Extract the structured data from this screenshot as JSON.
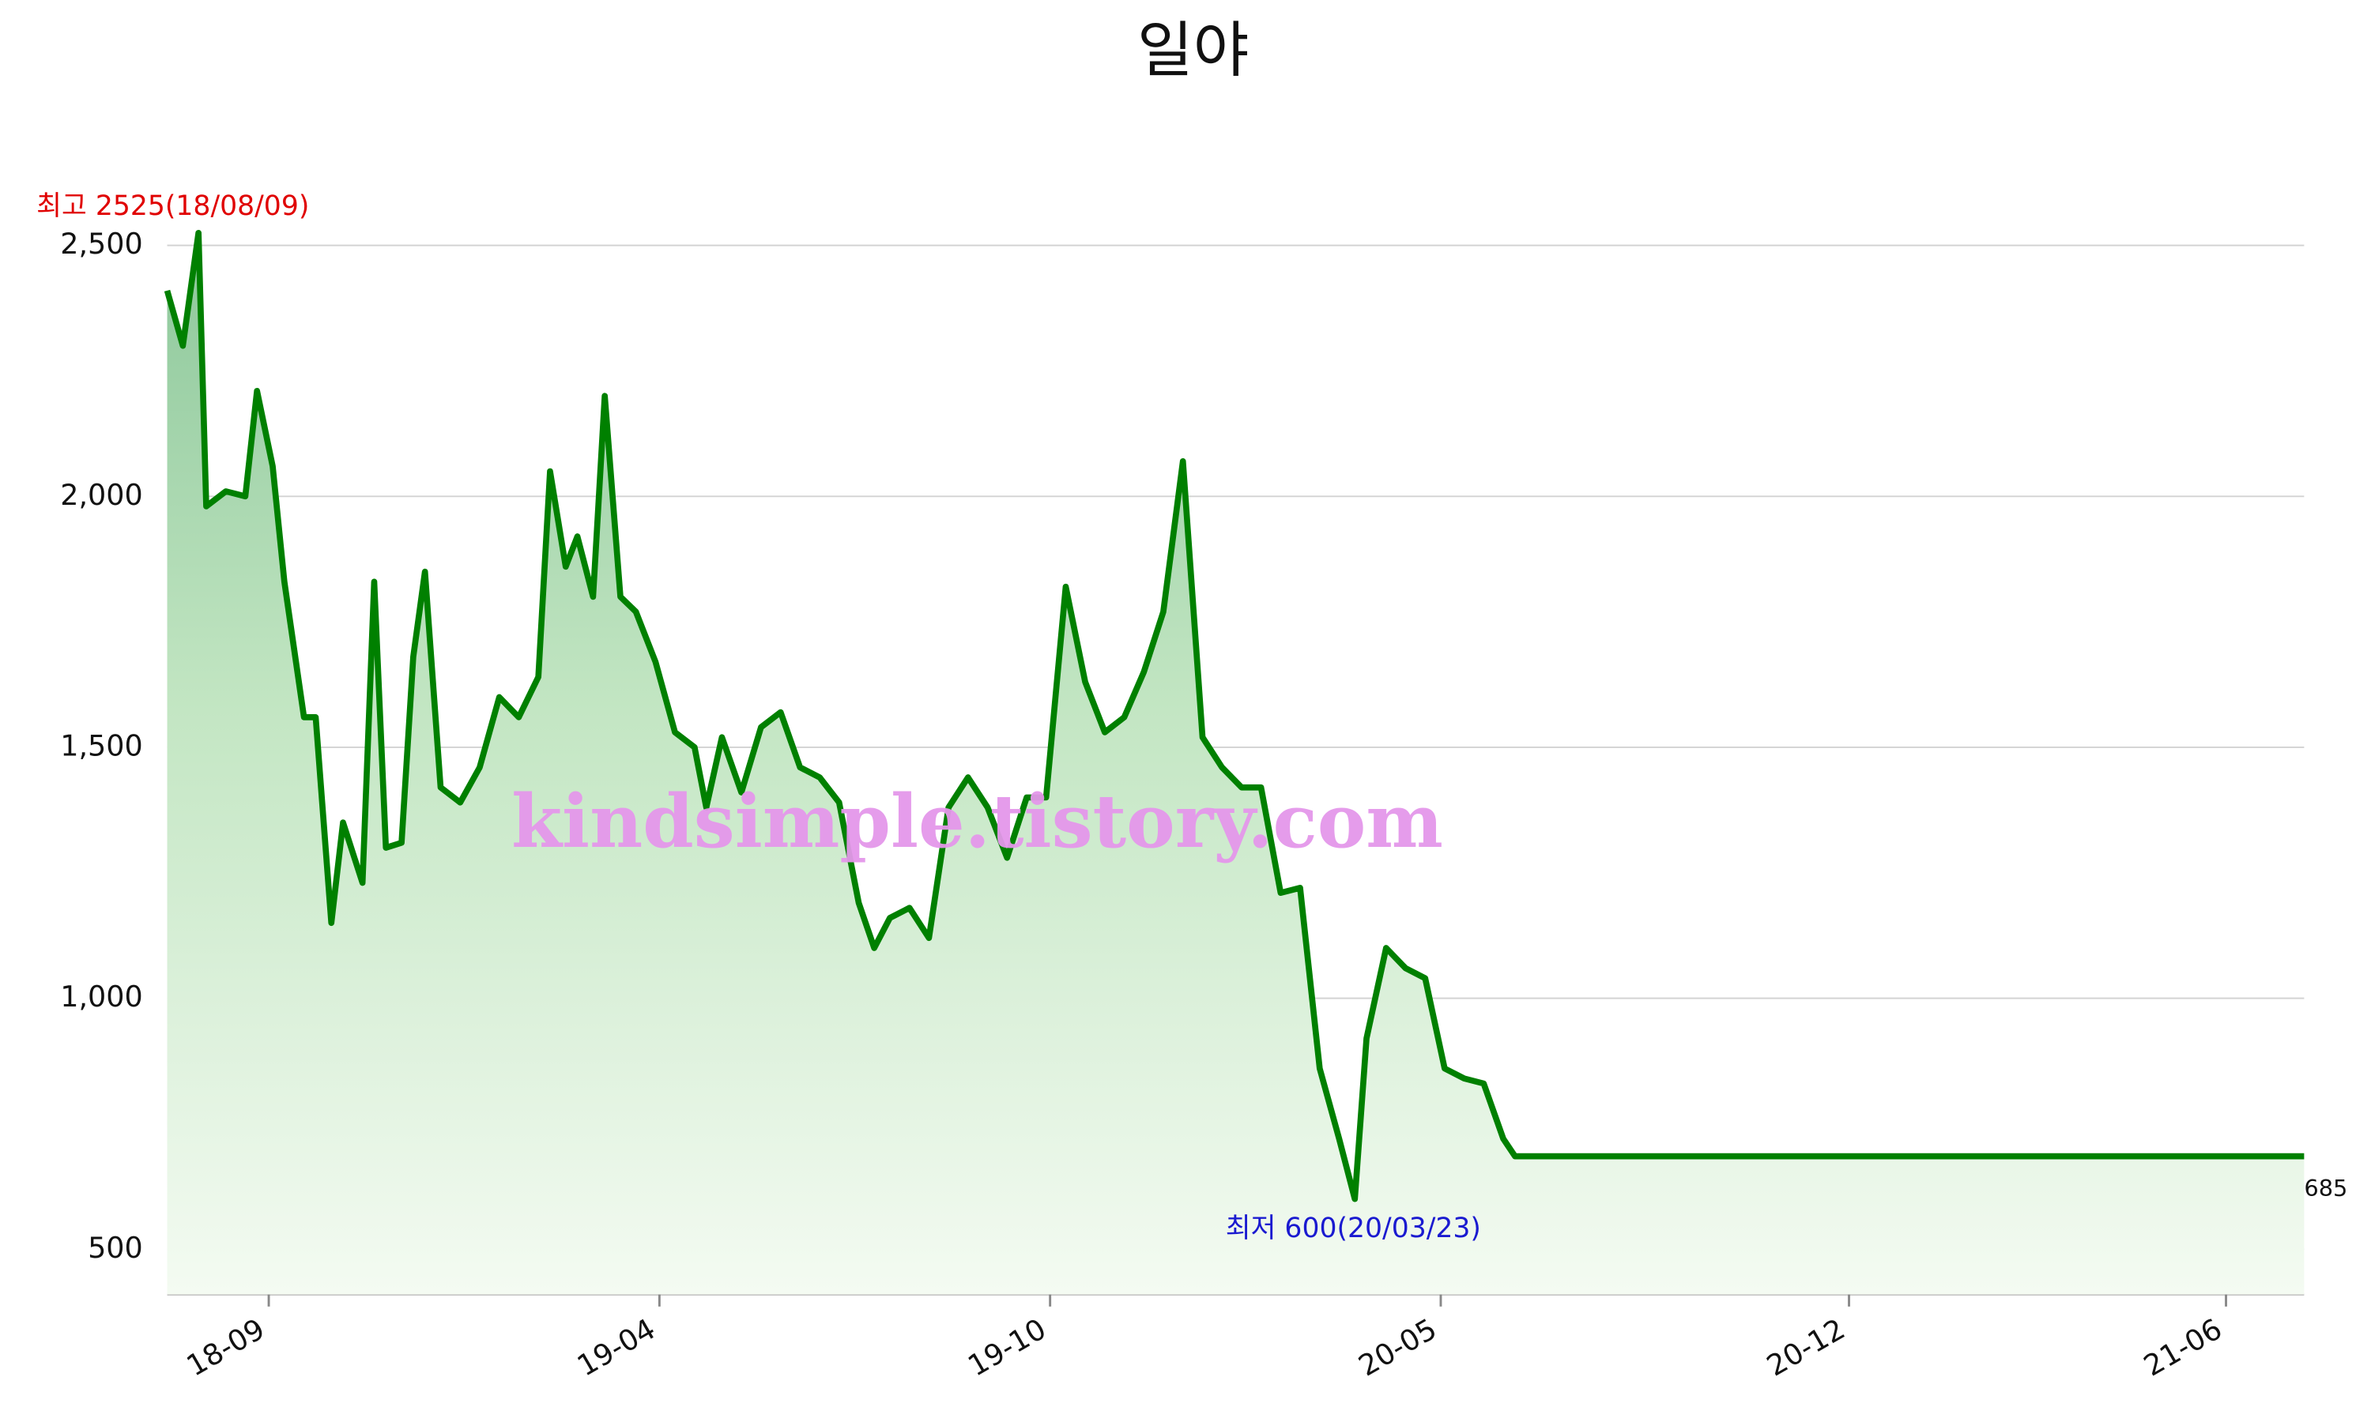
{
  "chart_data": {
    "type": "line",
    "title": "일야",
    "watermark": "kindsimple.tistory.com",
    "high_label": "최고 2525(18/08/09)",
    "low_label": "최저 600(20/03/23)",
    "x": [
      "18/07/24",
      "18/08/01",
      "18/08/09",
      "18/08/13",
      "18/08/23",
      "18/09/02",
      "18/09/08",
      "18/09/16",
      "18/09/22",
      "18/10/02",
      "18/10/08",
      "18/10/16",
      "18/10/22",
      "18/11/01",
      "18/11/07",
      "18/11/13",
      "18/11/21",
      "18/11/27",
      "18/12/03",
      "18/12/11",
      "18/12/21",
      "18/12/31",
      "19/01/10",
      "19/01/20",
      "19/01/30",
      "19/02/05",
      "19/02/13",
      "19/02/19",
      "19/02/27",
      "19/03/05",
      "19/03/13",
      "19/03/21",
      "19/03/31",
      "19/04/10",
      "19/04/20",
      "19/04/26",
      "19/05/04",
      "19/05/14",
      "19/05/24",
      "19/06/03",
      "19/06/13",
      "19/06/23",
      "19/07/03",
      "19/07/13",
      "19/07/21",
      "19/07/29",
      "19/08/08",
      "19/08/18",
      "19/08/28",
      "19/09/07",
      "19/09/17",
      "19/09/27",
      "19/10/07",
      "19/10/17",
      "19/10/27",
      "19/11/06",
      "19/11/16",
      "19/11/26",
      "19/12/06",
      "19/12/16",
      "19/12/26",
      "20/01/05",
      "20/01/15",
      "20/01/25",
      "20/02/04",
      "20/02/14",
      "20/02/24",
      "20/03/05",
      "20/03/15",
      "20/03/23",
      "20/03/29",
      "20/04/08",
      "20/04/18",
      "20/04/28",
      "20/05/08",
      "20/05/18",
      "20/05/28",
      "20/06/07",
      "20/06/13",
      "21/07/22"
    ],
    "series": [
      {
        "name": "일야",
        "color": "#008000",
        "values": [
          2410,
          2300,
          2525,
          1980,
          2010,
          2000,
          2210,
          2060,
          1830,
          1560,
          1560,
          1150,
          1350,
          1230,
          1830,
          1300,
          1310,
          1680,
          1850,
          1420,
          1390,
          1460,
          1600,
          1560,
          1640,
          2050,
          1860,
          1920,
          1800,
          2200,
          1800,
          1770,
          1670,
          1530,
          1500,
          1380,
          1520,
          1410,
          1540,
          1570,
          1460,
          1440,
          1390,
          1190,
          1100,
          1160,
          1180,
          1120,
          1380,
          1440,
          1380,
          1280,
          1400,
          1400,
          1820,
          1630,
          1530,
          1560,
          1650,
          1770,
          2070,
          1520,
          1460,
          1420,
          1420,
          1210,
          1220,
          860,
          720,
          600,
          920,
          1100,
          1060,
          1040,
          860,
          840,
          830,
          720,
          685,
          685
        ]
      }
    ],
    "xlim": [
      "18/07/24",
      "21/07/22"
    ],
    "xticks": [
      {
        "value": "18/09/14",
        "label": "18-09"
      },
      {
        "value": "19/04/02",
        "label": "19-04"
      },
      {
        "value": "19/10/19",
        "label": "19-10"
      },
      {
        "value": "20/05/06",
        "label": "20-05"
      },
      {
        "value": "20/12/01",
        "label": "20-12"
      },
      {
        "value": "21/06/12",
        "label": "21-06"
      }
    ],
    "ylim": [
      410,
      2550
    ],
    "yticks": [
      500,
      {
        "value": 1000,
        "label": "1,000"
      },
      {
        "value": 1500,
        "label": "1,500"
      },
      {
        "value": 2000,
        "label": "2,000"
      },
      {
        "value": 2500,
        "label": "2,500"
      }
    ],
    "grid": true
  }
}
